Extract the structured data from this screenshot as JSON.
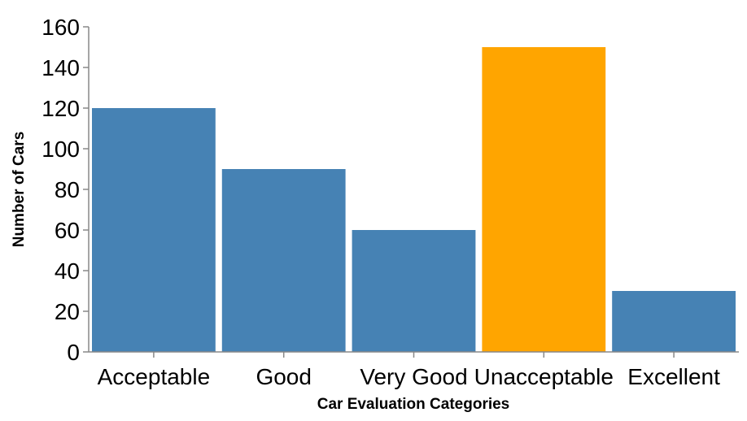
{
  "chart_data": {
    "type": "bar",
    "categories": [
      "Acceptable",
      "Good",
      "Very Good",
      "Unacceptable",
      "Excellent"
    ],
    "values": [
      120,
      90,
      60,
      150,
      30
    ],
    "xlabel": "Car Evaluation Categories",
    "ylabel": "Number of Cars",
    "ylim": [
      0,
      160
    ],
    "yticks": [
      0,
      20,
      40,
      60,
      80,
      100,
      120,
      140,
      160
    ],
    "grid": false,
    "colors": {
      "default": "#4682b4",
      "highlight": "#ffa500"
    },
    "highlight_category": "Unacceptable"
  }
}
